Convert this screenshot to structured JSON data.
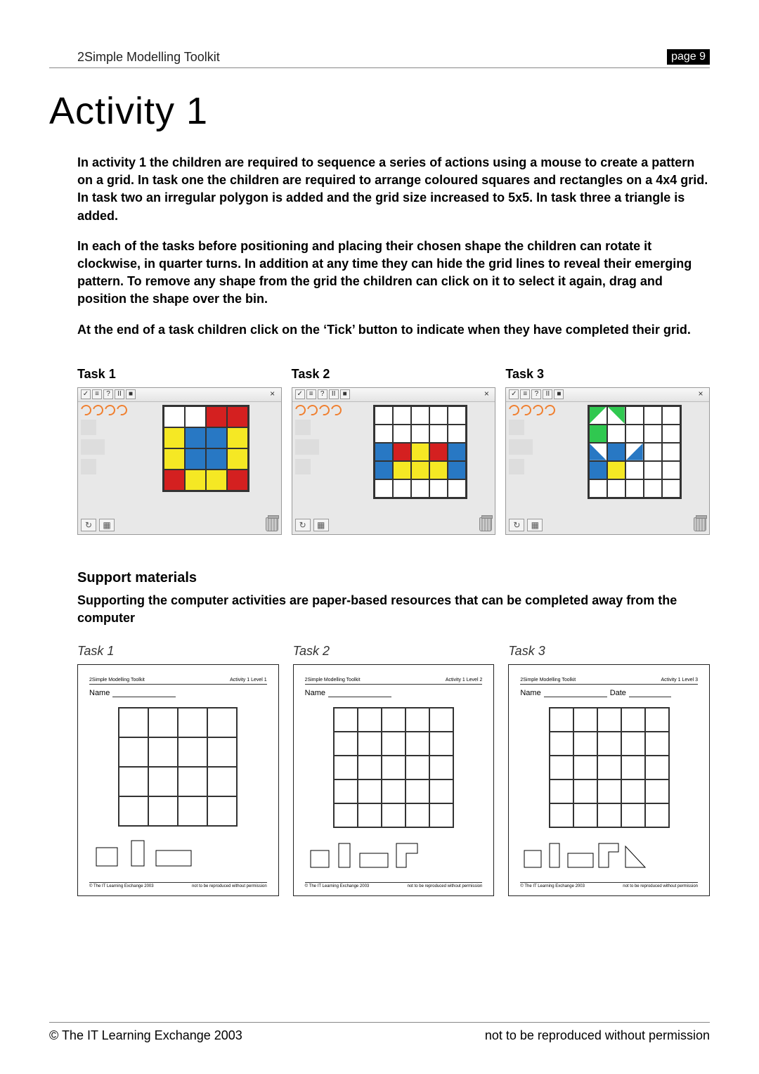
{
  "header": {
    "doc_title": "2Simple Modelling Toolkit",
    "page_label": "page 9"
  },
  "title": "Activity 1",
  "paragraphs": [
    "In activity 1 the children are required to sequence a series of actions using a mouse to create a pattern on a grid.  In task one the children are required to arrange coloured squares and rectangles on a 4x4 grid.  In task two an irregular polygon is added and the grid size increased to 5x5.  In task three a triangle is added.",
    "In each of the tasks before positioning and placing their chosen shape the children can rotate it clockwise, in quarter turns.  In addition at any time they can hide the grid lines to reveal their emerging pattern.  To remove any shape from the grid the children can click on it to select it again, drag and position the shape over the bin.",
    "At the end of a task children click on the ‘Tick’ button to indicate when they have completed their grid."
  ],
  "tasks": [
    {
      "label": "Task 1",
      "grid_size": 4,
      "cells": {
        "0,2": "#d42020",
        "0,3": "#d42020",
        "1,0": "#f5e824",
        "1,1": "#2878c4",
        "1,2": "#2878c4",
        "1,3": "#f5e824",
        "2,0": "#f5e824",
        "2,1": "#2878c4",
        "2,2": "#2878c4",
        "2,3": "#f5e824",
        "3,0": "#d42020",
        "3,1": "#f5e824",
        "3,2": "#f5e824",
        "3,3": "#d42020"
      },
      "triangles": {}
    },
    {
      "label": "Task 2",
      "grid_size": 5,
      "cells": {
        "2,0": "#2878c4",
        "2,4": "#2878c4",
        "3,0": "#2878c4",
        "3,4": "#2878c4",
        "2,1": "#d42020",
        "2,3": "#d42020",
        "2,2": "#f5e824",
        "3,2": "#f5e824",
        "3,1": "#f5e824",
        "3,3": "#f5e824"
      },
      "triangles": {}
    },
    {
      "label": "Task 3",
      "grid_size": 5,
      "cells": {
        "1,0": "#30c850",
        "2,1": "#2878c4",
        "3,0": "#2878c4",
        "3,1": "#f5e824"
      },
      "triangles": {
        "0,0": {
          "color": "#30c850",
          "dir": "tl"
        },
        "0,1": {
          "color": "#30c850",
          "dir": "tr"
        },
        "2,0": {
          "color": "#2878c4",
          "dir": "bl"
        },
        "2,2": {
          "color": "#2878c4",
          "dir": "br"
        }
      }
    }
  ],
  "support": {
    "heading": "Support materials",
    "intro": "Supporting the computer activities are paper-based resources that can be completed away from the computer",
    "sheets": [
      {
        "label": "Task 1",
        "grid": 4,
        "header_left": "2Simple Modelling Toolkit",
        "header_right": "Activity 1  Level 1",
        "name_label": "Name",
        "date_label": null,
        "shapes": "t1"
      },
      {
        "label": "Task 2",
        "grid": 5,
        "header_left": "2Simple Modelling Toolkit",
        "header_right": "Activity 1  Level 2",
        "name_label": "Name",
        "date_label": null,
        "shapes": "t2"
      },
      {
        "label": "Task 3",
        "grid": 5,
        "header_left": "2Simple Modelling Toolkit",
        "header_right": "Activity 1  Level 3",
        "name_label": "Name",
        "date_label": "Date",
        "shapes": "t3"
      }
    ],
    "footer_left": "© The IT Learning Exchange 2003",
    "footer_right": "not to be reproduced without permission"
  },
  "footer": {
    "left": "© The IT Learning Exchange 2003",
    "right": "not to be reproduced without permission"
  },
  "colors": {
    "red": "#d42020",
    "yellow": "#f5e824",
    "blue": "#2878c4",
    "green": "#30c850"
  }
}
